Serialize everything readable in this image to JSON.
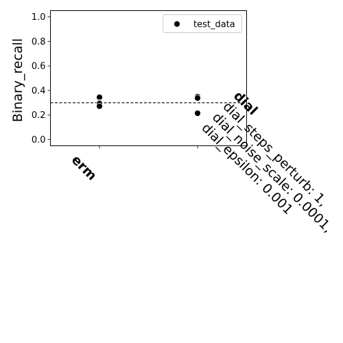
{
  "chart_data": {
    "type": "scatter",
    "ylabel": "Binary_recall",
    "ylim": [
      -0.05,
      1.05
    ],
    "yticks": [
      0.0,
      0.2,
      0.4,
      0.6,
      0.8,
      1.0
    ],
    "ytick_labels": [
      "0.0",
      "0.2",
      "0.4",
      "0.6",
      "0.8",
      "1.0"
    ],
    "categories": [
      {
        "name": "erm",
        "extra_lines": []
      },
      {
        "name": "dial",
        "extra_lines": [
          "dial_steps_perturb: 1,",
          "dial_noise_scale: 0.0001,",
          "dial_epsilon: 0.001"
        ]
      }
    ],
    "series": [
      {
        "name": "test_data",
        "color": "#000000",
        "points": [
          {
            "category": "erm",
            "y": 0.345
          },
          {
            "category": "erm",
            "y": 0.3
          },
          {
            "category": "erm",
            "y": 0.293
          },
          {
            "category": "erm",
            "y": 0.272
          },
          {
            "category": "dial",
            "y": 0.35
          },
          {
            "category": "dial",
            "y": 0.338
          },
          {
            "category": "dial",
            "y": 0.215
          }
        ]
      }
    ],
    "reference_line": {
      "y": 0.3,
      "style": "dashed",
      "color": "#000000"
    },
    "legend": {
      "position": "top-right",
      "marker": "circle"
    },
    "grid": false
  }
}
